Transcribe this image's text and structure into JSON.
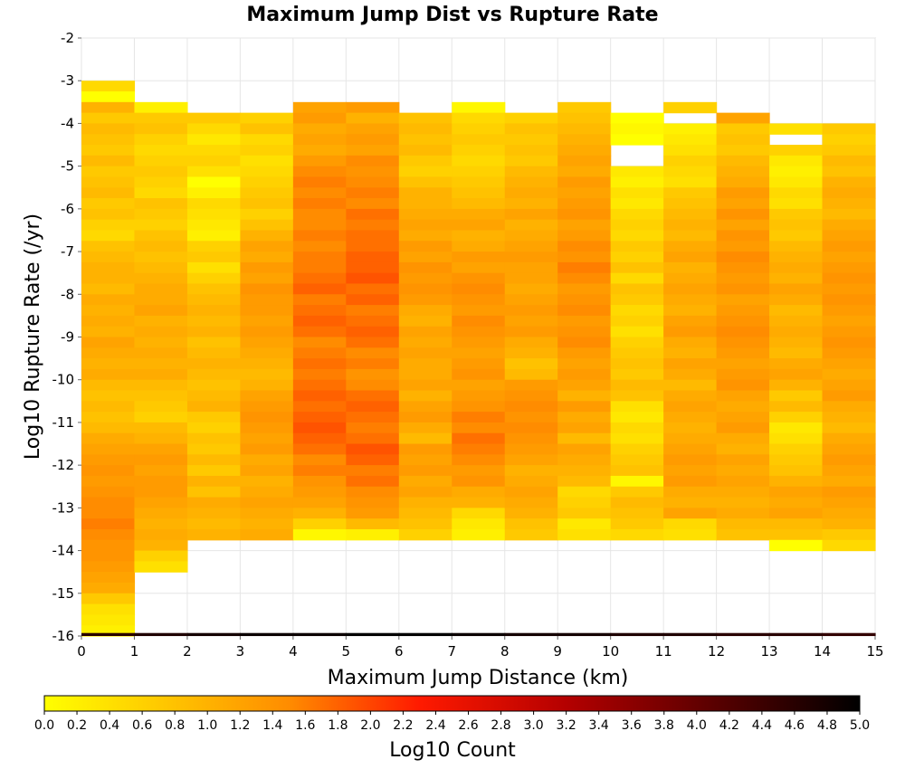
{
  "chart_data": {
    "type": "heatmap",
    "title": "Maximum Jump Dist vs Rupture Rate",
    "xlabel": "Maximum Jump Distance (km)",
    "ylabel": "Log10 Rupture Rate (/yr)",
    "xlim": [
      0,
      15
    ],
    "ylim": [
      -16,
      -2
    ],
    "x_ticks": [
      "0",
      "1",
      "2",
      "3",
      "4",
      "5",
      "6",
      "7",
      "8",
      "9",
      "10",
      "11",
      "12",
      "13",
      "14",
      "15"
    ],
    "y_ticks": [
      "-2",
      "-3",
      "-4",
      "-5",
      "-6",
      "-7",
      "-8",
      "-9",
      "-10",
      "-11",
      "-12",
      "-13",
      "-14",
      "-15",
      "-16"
    ],
    "x_bin_width": 1,
    "y_bin_width": 0.25,
    "y_bin_start": -16,
    "colorbar": {
      "label": "Log10 Count",
      "range": [
        0,
        5
      ],
      "ticks": [
        "0.0",
        "0.2",
        "0.4",
        "0.6",
        "0.8",
        "1.0",
        "1.2",
        "1.4",
        "1.6",
        "1.8",
        "2.0",
        "2.2",
        "2.4",
        "2.6",
        "2.8",
        "3.0",
        "3.2",
        "3.4",
        "3.6",
        "3.8",
        "4.0",
        "4.2",
        "4.4",
        "4.6",
        "4.8",
        "5.0"
      ],
      "colors": [
        "#ffff00",
        "#ff8c00",
        "#ff1a00",
        "#b40000",
        "#000000"
      ]
    },
    "columns": [
      {
        "x": 0,
        "top": -3.0,
        "values": [
          0.5,
          0.0,
          1.0,
          0.7,
          0.9,
          0.8,
          0.7,
          0.9,
          0.7,
          0.8,
          0.9,
          0.7,
          0.8,
          0.6,
          0.5,
          0.8,
          0.9,
          1.0,
          1.0,
          0.9,
          1.1,
          1.0,
          1.1,
          1.0,
          1.2,
          1.1,
          1.0,
          1.1,
          0.9,
          0.8,
          0.9,
          0.8,
          0.9,
          1.1,
          1.2,
          1.3,
          1.4,
          1.3,
          1.4,
          1.5,
          1.5,
          1.6,
          1.5,
          1.4,
          1.4,
          1.3,
          1.2,
          1.1,
          0.7,
          0.4,
          0.3,
          0.2
        ]
      },
      {
        "x": 1,
        "top": -3.5,
        "values": [
          0.2,
          0.7,
          0.8,
          0.6,
          0.5,
          0.6,
          0.7,
          0.6,
          0.5,
          0.8,
          0.7,
          0.6,
          0.8,
          0.9,
          0.8,
          0.9,
          1.0,
          1.1,
          1.1,
          1.2,
          1.0,
          1.1,
          1.0,
          1.1,
          1.0,
          1.1,
          0.9,
          0.8,
          0.7,
          0.6,
          0.9,
          1.0,
          1.2,
          1.3,
          1.2,
          1.3,
          1.3,
          1.2,
          1.1,
          1.0,
          1.1,
          1.0,
          0.6,
          0.4
        ]
      },
      {
        "x": 2,
        "top": -3.75,
        "values": [
          0.7,
          0.5,
          0.3,
          0.5,
          0.6,
          0.4,
          0.0,
          0.2,
          0.5,
          0.4,
          0.3,
          0.2,
          0.6,
          0.7,
          0.4,
          0.6,
          0.8,
          0.9,
          1.0,
          0.9,
          1.0,
          0.8,
          0.9,
          1.0,
          0.9,
          0.8,
          0.9,
          1.0,
          0.7,
          0.6,
          0.8,
          0.7,
          0.9,
          0.7,
          1.0,
          0.8,
          1.1,
          1.0,
          0.9,
          1.0
        ]
      },
      {
        "x": 3,
        "top": -3.75,
        "values": [
          0.6,
          0.8,
          0.5,
          0.6,
          0.4,
          0.5,
          0.6,
          0.7,
          0.8,
          0.6,
          0.8,
          1.0,
          1.2,
          1.1,
          1.3,
          1.2,
          1.4,
          1.3,
          1.3,
          1.2,
          1.3,
          1.2,
          1.1,
          1.0,
          0.9,
          1.0,
          1.2,
          1.3,
          1.4,
          1.3,
          1.2,
          1.3,
          1.1,
          1.2,
          1.0,
          1.1,
          1.2,
          1.1,
          1.0,
          1.1
        ]
      },
      {
        "x": 4,
        "top": -3.5,
        "values": [
          1.2,
          1.3,
          1.1,
          1.2,
          1.1,
          1.3,
          1.5,
          1.6,
          1.5,
          1.6,
          1.5,
          1.5,
          1.6,
          1.5,
          1.6,
          1.6,
          1.7,
          1.8,
          1.6,
          1.7,
          1.8,
          1.7,
          1.5,
          1.6,
          1.7,
          1.6,
          1.7,
          1.8,
          1.7,
          1.8,
          1.9,
          1.8,
          1.7,
          1.5,
          1.6,
          1.4,
          1.3,
          1.2,
          1.0,
          0.6,
          0.1
        ]
      },
      {
        "x": 5,
        "top": -3.5,
        "values": [
          1.3,
          1.0,
          1.2,
          1.3,
          1.2,
          1.5,
          1.4,
          1.5,
          1.6,
          1.5,
          1.7,
          1.6,
          1.7,
          1.7,
          1.8,
          1.8,
          1.9,
          1.7,
          1.8,
          1.6,
          1.7,
          1.8,
          1.7,
          1.5,
          1.6,
          1.4,
          1.5,
          1.7,
          1.8,
          1.7,
          1.6,
          1.7,
          1.9,
          1.8,
          1.6,
          1.7,
          1.5,
          1.4,
          1.3,
          0.9,
          0.2
        ]
      },
      {
        "x": 6,
        "top": -3.75,
        "values": [
          0.8,
          0.9,
          0.8,
          0.9,
          0.7,
          0.6,
          0.8,
          1.0,
          1.0,
          1.1,
          1.2,
          1.1,
          1.3,
          1.2,
          1.4,
          1.3,
          1.4,
          1.3,
          1.1,
          1.0,
          1.2,
          1.1,
          1.2,
          1.1,
          1.1,
          1.2,
          1.0,
          1.2,
          1.3,
          1.1,
          0.9,
          1.3,
          1.2,
          1.3,
          1.1,
          1.2,
          1.0,
          0.9,
          0.8,
          0.6
        ]
      },
      {
        "x": 7,
        "top": -3.5,
        "values": [
          0.1,
          0.5,
          0.6,
          0.7,
          0.6,
          0.5,
          0.6,
          0.7,
          0.8,
          0.9,
          1.1,
          1.2,
          1.0,
          1.1,
          1.3,
          1.2,
          1.4,
          1.5,
          1.4,
          1.3,
          1.5,
          1.4,
          1.3,
          1.2,
          1.3,
          1.4,
          1.2,
          1.3,
          1.4,
          1.6,
          1.5,
          1.7,
          1.6,
          1.5,
          1.3,
          1.4,
          1.1,
          1.0,
          0.5,
          0.3,
          0.2
        ]
      },
      {
        "x": 8,
        "top": -3.75,
        "values": [
          0.6,
          0.8,
          0.7,
          0.8,
          0.7,
          0.9,
          1.0,
          1.1,
          1.0,
          1.2,
          1.0,
          1.1,
          1.2,
          1.3,
          1.2,
          1.2,
          1.1,
          1.2,
          1.3,
          1.2,
          1.3,
          1.1,
          1.0,
          0.8,
          0.9,
          1.3,
          1.4,
          1.5,
          1.4,
          1.5,
          1.4,
          1.3,
          1.2,
          1.0,
          1.1,
          1.2,
          1.1,
          1.0,
          0.8,
          0.7
        ]
      },
      {
        "x": 9,
        "top": -3.5,
        "values": [
          0.7,
          0.8,
          0.9,
          1.0,
          1.1,
          1.2,
          1.1,
          1.3,
          1.2,
          1.3,
          1.4,
          1.2,
          1.3,
          1.5,
          1.4,
          1.6,
          1.5,
          1.3,
          1.4,
          1.5,
          1.3,
          1.4,
          1.5,
          1.3,
          1.2,
          1.3,
          1.2,
          1.0,
          1.3,
          1.1,
          1.2,
          0.9,
          1.2,
          1.1,
          1.0,
          0.9,
          0.5,
          0.6,
          0.7,
          0.3,
          0.4
        ]
      },
      {
        "x": 10,
        "top": -3.75,
        "values": [
          0.0,
          0.1,
          0.0,
          null,
          null,
          0.3,
          0.2,
          0.4,
          0.3,
          0.5,
          0.6,
          0.5,
          0.7,
          0.6,
          0.8,
          0.5,
          0.8,
          0.7,
          0.5,
          0.6,
          0.4,
          0.6,
          0.7,
          0.8,
          0.7,
          0.9,
          0.8,
          0.4,
          0.3,
          0.5,
          0.4,
          0.6,
          0.7,
          0.8,
          0.1,
          0.7,
          0.9,
          0.8,
          0.7,
          0.5
        ]
      },
      {
        "x": 11,
        "top": -3.5,
        "values": [
          0.6,
          null,
          0.2,
          0.3,
          0.4,
          0.6,
          0.5,
          0.4,
          0.7,
          0.8,
          0.9,
          1.0,
          0.9,
          1.1,
          1.2,
          1.0,
          1.1,
          1.2,
          1.1,
          1.0,
          1.2,
          1.3,
          1.1,
          1.0,
          1.2,
          1.1,
          0.9,
          1.1,
          1.2,
          1.1,
          1.0,
          1.1,
          1.2,
          1.3,
          1.2,
          1.3,
          1.1,
          1.0,
          1.2,
          0.5,
          0.4
        ]
      },
      {
        "x": 12,
        "top": -3.75,
        "values": [
          1.2,
          0.7,
          0.8,
          0.7,
          0.9,
          1.0,
          1.1,
          1.3,
          1.2,
          1.4,
          1.2,
          1.4,
          1.3,
          1.5,
          1.4,
          1.3,
          1.4,
          1.2,
          1.3,
          1.4,
          1.5,
          1.4,
          1.3,
          1.2,
          1.3,
          1.4,
          1.2,
          1.1,
          1.2,
          1.3,
          1.1,
          1.0,
          1.2,
          1.1,
          1.2,
          1.1,
          1.0,
          1.1,
          0.9,
          0.8
        ]
      },
      {
        "x": 13,
        "top": -4.0,
        "values": [
          0.4,
          null,
          0.6,
          0.3,
          0.2,
          0.3,
          0.5,
          0.4,
          0.7,
          0.8,
          0.7,
          0.9,
          1.0,
          1.1,
          1.0,
          1.2,
          1.1,
          0.9,
          1.0,
          1.1,
          1.0,
          0.9,
          1.1,
          1.2,
          1.0,
          0.7,
          0.9,
          0.6,
          0.3,
          0.4,
          0.6,
          0.7,
          0.8,
          1.0,
          1.2,
          1.1,
          1.2,
          0.9,
          0.8,
          0.0
        ]
      },
      {
        "x": 14,
        "top": -4.0,
        "values": [
          0.7,
          0.6,
          0.7,
          0.9,
          0.8,
          1.0,
          1.1,
          1.0,
          0.9,
          1.1,
          1.2,
          1.3,
          1.2,
          1.3,
          1.4,
          1.3,
          1.4,
          1.3,
          1.2,
          1.3,
          1.4,
          1.3,
          1.2,
          1.1,
          1.2,
          1.3,
          1.1,
          1.0,
          0.9,
          1.1,
          1.2,
          1.3,
          1.2,
          1.1,
          1.3,
          1.2,
          1.1,
          1.0,
          0.7,
          0.5
        ]
      }
    ],
    "bottom_row": {
      "y": -16,
      "values": [
        4.6,
        4.7,
        4.8,
        4.9,
        4.9,
        5.0,
        5.0,
        4.9,
        4.8,
        4.8,
        4.7,
        4.7,
        4.6,
        4.6,
        4.5
      ]
    }
  }
}
